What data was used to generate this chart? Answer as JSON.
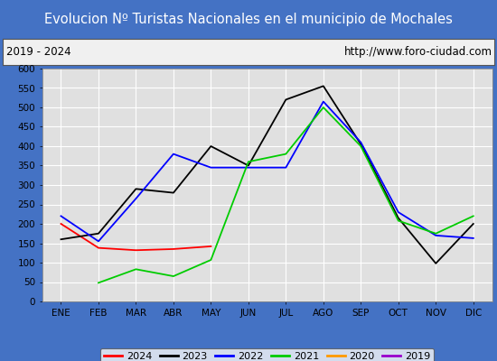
{
  "title": "Evolucion Nº Turistas Nacionales en el municipio de Mochales",
  "subtitle_left": "2019 - 2024",
  "subtitle_right": "http://www.foro-ciudad.com",
  "months": [
    "ENE",
    "FEB",
    "MAR",
    "ABR",
    "MAY",
    "JUN",
    "JUL",
    "AGO",
    "SEP",
    "OCT",
    "NOV",
    "DIC"
  ],
  "ylim": [
    0,
    600
  ],
  "yticks": [
    0,
    50,
    100,
    150,
    200,
    250,
    300,
    350,
    400,
    450,
    500,
    550,
    600
  ],
  "series_order": [
    "2024",
    "2023",
    "2022",
    "2021",
    "2020",
    "2019"
  ],
  "series_data": {
    "2024": [
      200,
      138,
      132,
      135,
      142,
      null,
      null,
      null,
      null,
      null,
      null,
      null
    ],
    "2023": [
      160,
      175,
      290,
      280,
      400,
      350,
      520,
      555,
      405,
      215,
      98,
      200
    ],
    "2022": [
      220,
      155,
      265,
      380,
      345,
      345,
      345,
      515,
      410,
      230,
      170,
      163
    ],
    "2021": [
      null,
      48,
      83,
      65,
      107,
      360,
      380,
      500,
      400,
      208,
      175,
      220
    ],
    "2020": [
      null,
      null,
      null,
      null,
      null,
      null,
      null,
      null,
      null,
      null,
      null,
      null
    ],
    "2019": [
      null,
      null,
      null,
      null,
      null,
      null,
      null,
      null,
      null,
      null,
      null,
      null
    ]
  },
  "colors": {
    "2024": "#ff0000",
    "2023": "#000000",
    "2022": "#0000ff",
    "2021": "#00cc00",
    "2020": "#ff9900",
    "2019": "#9900cc"
  },
  "title_bg_color": "#4472c4",
  "title_text_color": "#ffffff",
  "subtitle_bg_color": "#f0f0f0",
  "plot_bg_color": "#e0e0e0",
  "grid_color": "#ffffff",
  "legend_bg_color": "#f8f8f8"
}
